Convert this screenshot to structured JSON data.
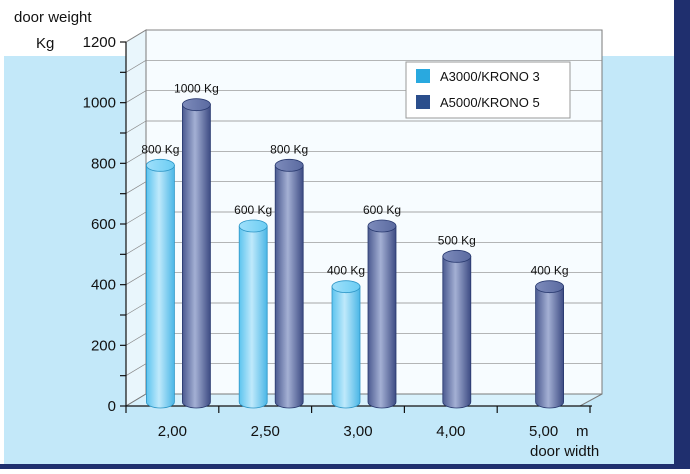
{
  "chart_data": {
    "type": "bar",
    "title": "door weight",
    "ylabel": "door weight",
    "y_unit_label": "Kg",
    "xlabel": "door width",
    "x_unit_label": "m",
    "categories": [
      "2,00",
      "2,50",
      "3,00",
      "4,00",
      "5,00"
    ],
    "yticks": [
      "0",
      "200",
      "400",
      "600",
      "800",
      "1000",
      "1200"
    ],
    "ylim": [
      0,
      1200
    ],
    "grid": true,
    "legend_position": "top-right",
    "series": [
      {
        "name": "A3000/KRONO 3",
        "color": "#29a9df",
        "values": [
          800,
          600,
          400,
          null,
          null
        ],
        "labels": [
          "800 Kg",
          "600 Kg",
          "400 Kg",
          "",
          ""
        ]
      },
      {
        "name": "A5000/KRONO 5",
        "color": "#2b4e8c",
        "values": [
          1000,
          800,
          600,
          500,
          400
        ],
        "labels": [
          "1000 Kg",
          "800 Kg",
          "600 Kg",
          "500 Kg",
          "400 Kg"
        ]
      }
    ]
  },
  "colors": {
    "panel_background": "#c3e8f9",
    "back_wall": "#f7fcff",
    "floor": "#d8f1fc",
    "frame_border": "#1f2f6e"
  }
}
